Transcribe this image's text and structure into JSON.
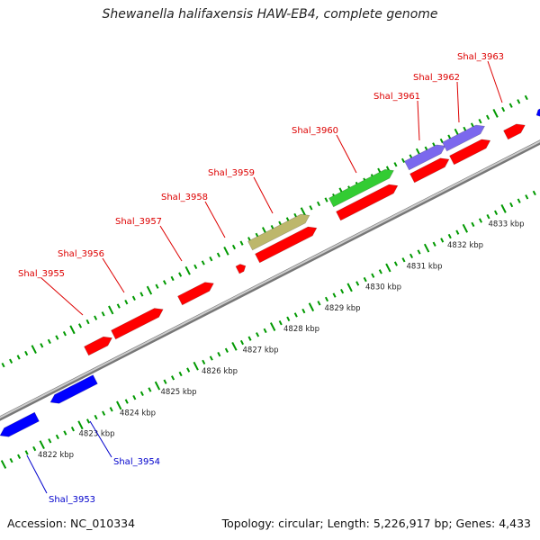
{
  "title": "Shewanella halifaxensis HAW-EB4, complete genome",
  "footer": {
    "accession": "Accession: NC_010334",
    "summary": "Topology: circular; Length: 5,226,917 bp; Genes: 4,433"
  },
  "colors": {
    "red_gene": "#ff0000",
    "blue_gene": "#0000ff",
    "purple_gene": "#7b68ee",
    "green_gene": "#33cc33",
    "khaki_gene": "#bdb76b",
    "backbone": "#999999",
    "tick": "#009900",
    "label_red": "#dd0000",
    "label_blue": "#0000cc"
  },
  "kbp_labels": [
    "4822 kbp",
    "4823 kbp",
    "4824 kbp",
    "4825 kbp",
    "4826 kbp",
    "4827 kbp",
    "4828 kbp",
    "4829 kbp",
    "4830 kbp",
    "4831 kbp",
    "4832 kbp",
    "4833 kbp"
  ],
  "gene_labels": {
    "top": [
      "Shal_3955",
      "Shal_3956",
      "Shal_3957",
      "Shal_3958",
      "Shal_3959",
      "Shal_3960",
      "Shal_3961",
      "Shal_3962",
      "Shal_3963"
    ],
    "bottom": [
      "Shal_3953",
      "Shal_3954"
    ]
  }
}
